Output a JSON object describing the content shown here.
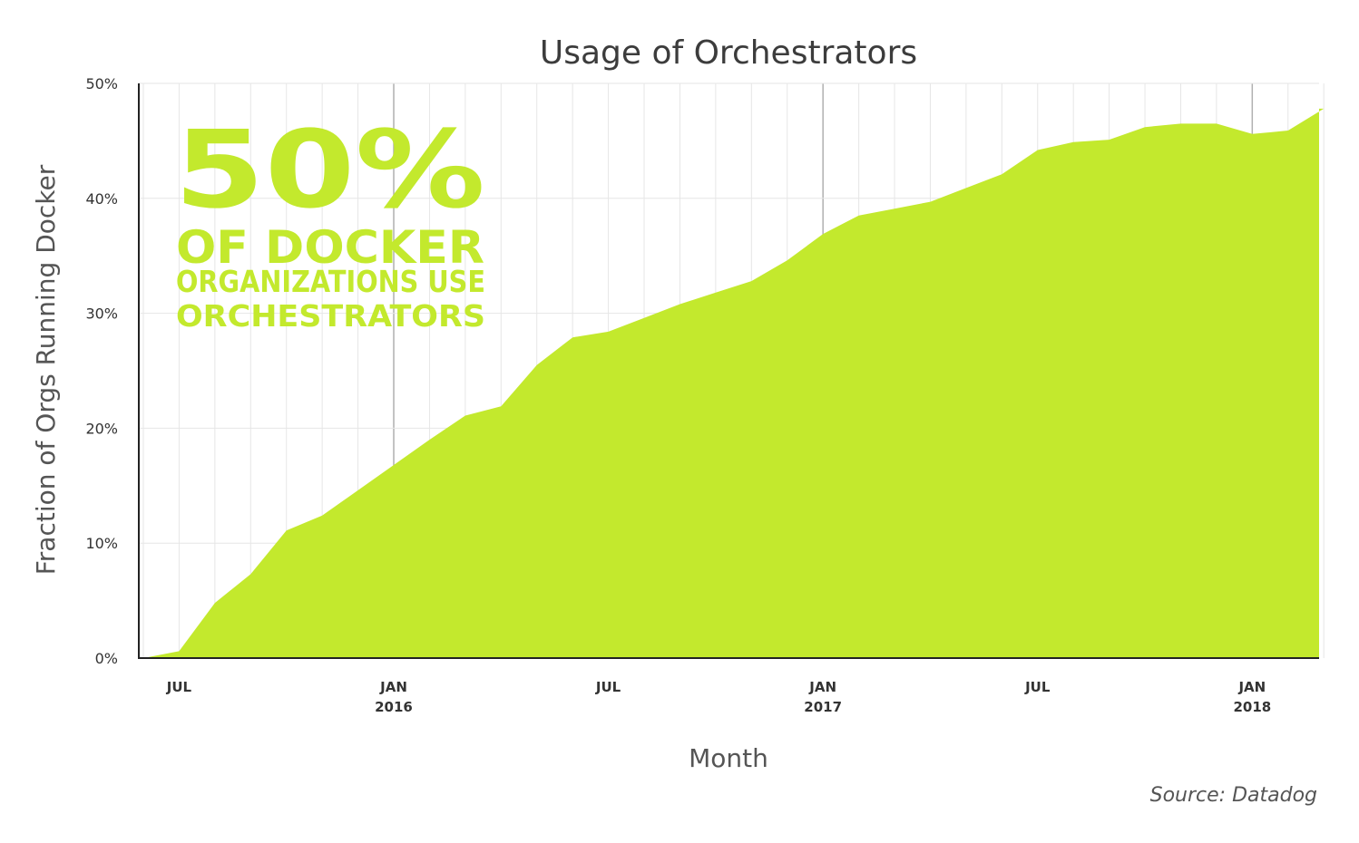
{
  "colors": {
    "area_fill": "#c3e92d",
    "grid_minor": "#e6e6e6",
    "grid_major": "#b0b0b0",
    "axis": "#222222",
    "title": "#3c3c3c"
  },
  "callout": {
    "big": "50%",
    "line1": "OF DOCKER",
    "line2": "ORGANIZATIONS USE",
    "line3": "ORCHESTRATORS"
  },
  "source": "Source: Datadog",
  "chart_data": {
    "type": "area",
    "title": "Usage of Orchestrators",
    "xlabel": "Month",
    "ylabel": "Fraction of Orgs Running Docker",
    "ylim": [
      0,
      50
    ],
    "y_ticks": [
      "0%",
      "10%",
      "20%",
      "30%",
      "40%",
      "50%"
    ],
    "x_ticks": [
      {
        "month": "2015-07",
        "line1": "JUL",
        "line2": ""
      },
      {
        "month": "2016-01",
        "line1": "JAN",
        "line2": "2016"
      },
      {
        "month": "2016-07",
        "line1": "JUL",
        "line2": ""
      },
      {
        "month": "2017-01",
        "line1": "JAN",
        "line2": "2017"
      },
      {
        "month": "2017-07",
        "line1": "JUL",
        "line2": ""
      },
      {
        "month": "2018-01",
        "line1": "JAN",
        "line2": "2018"
      }
    ],
    "grid": true,
    "series": [
      {
        "x": [
          "2015-06",
          "2015-07",
          "2015-08",
          "2015-09",
          "2015-10",
          "2015-11",
          "2015-12",
          "2016-01",
          "2016-02",
          "2016-03",
          "2016-04",
          "2016-05",
          "2016-06",
          "2016-07",
          "2016-08",
          "2016-09",
          "2016-10",
          "2016-11",
          "2016-12",
          "2017-01",
          "2017-02",
          "2017-03",
          "2017-04",
          "2017-05",
          "2017-06",
          "2017-07",
          "2017-08",
          "2017-09",
          "2017-10",
          "2017-11",
          "2017-12",
          "2018-01",
          "2018-02",
          "2018-03"
        ],
        "values": [
          0,
          0.6,
          4.8,
          7.3,
          11.1,
          12.4,
          14.6,
          16.8,
          19.0,
          21.1,
          21.9,
          25.5,
          27.9,
          28.4,
          29.6,
          30.8,
          31.8,
          32.8,
          34.6,
          36.9,
          38.5,
          39.1,
          39.7,
          40.9,
          42.1,
          44.2,
          44.9,
          45.1,
          46.2,
          46.5,
          46.5,
          45.6,
          45.9,
          47.8
        ]
      }
    ]
  }
}
